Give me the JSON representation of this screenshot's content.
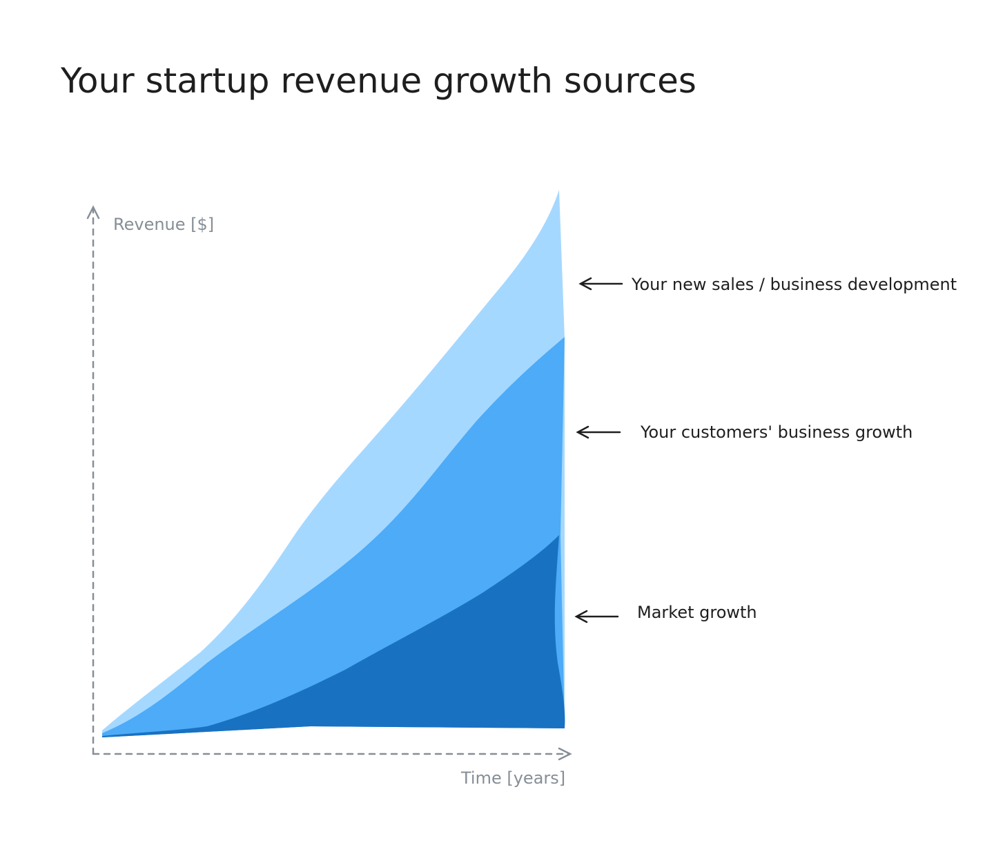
{
  "title": "Your startup revenue growth sources",
  "axes": {
    "y_label": "Revenue [$]",
    "x_label": "Time [years]"
  },
  "layers": [
    {
      "label": "Your new sales / business development"
    },
    {
      "label": "Your customers' business growth"
    },
    {
      "label": "Market growth"
    }
  ]
}
